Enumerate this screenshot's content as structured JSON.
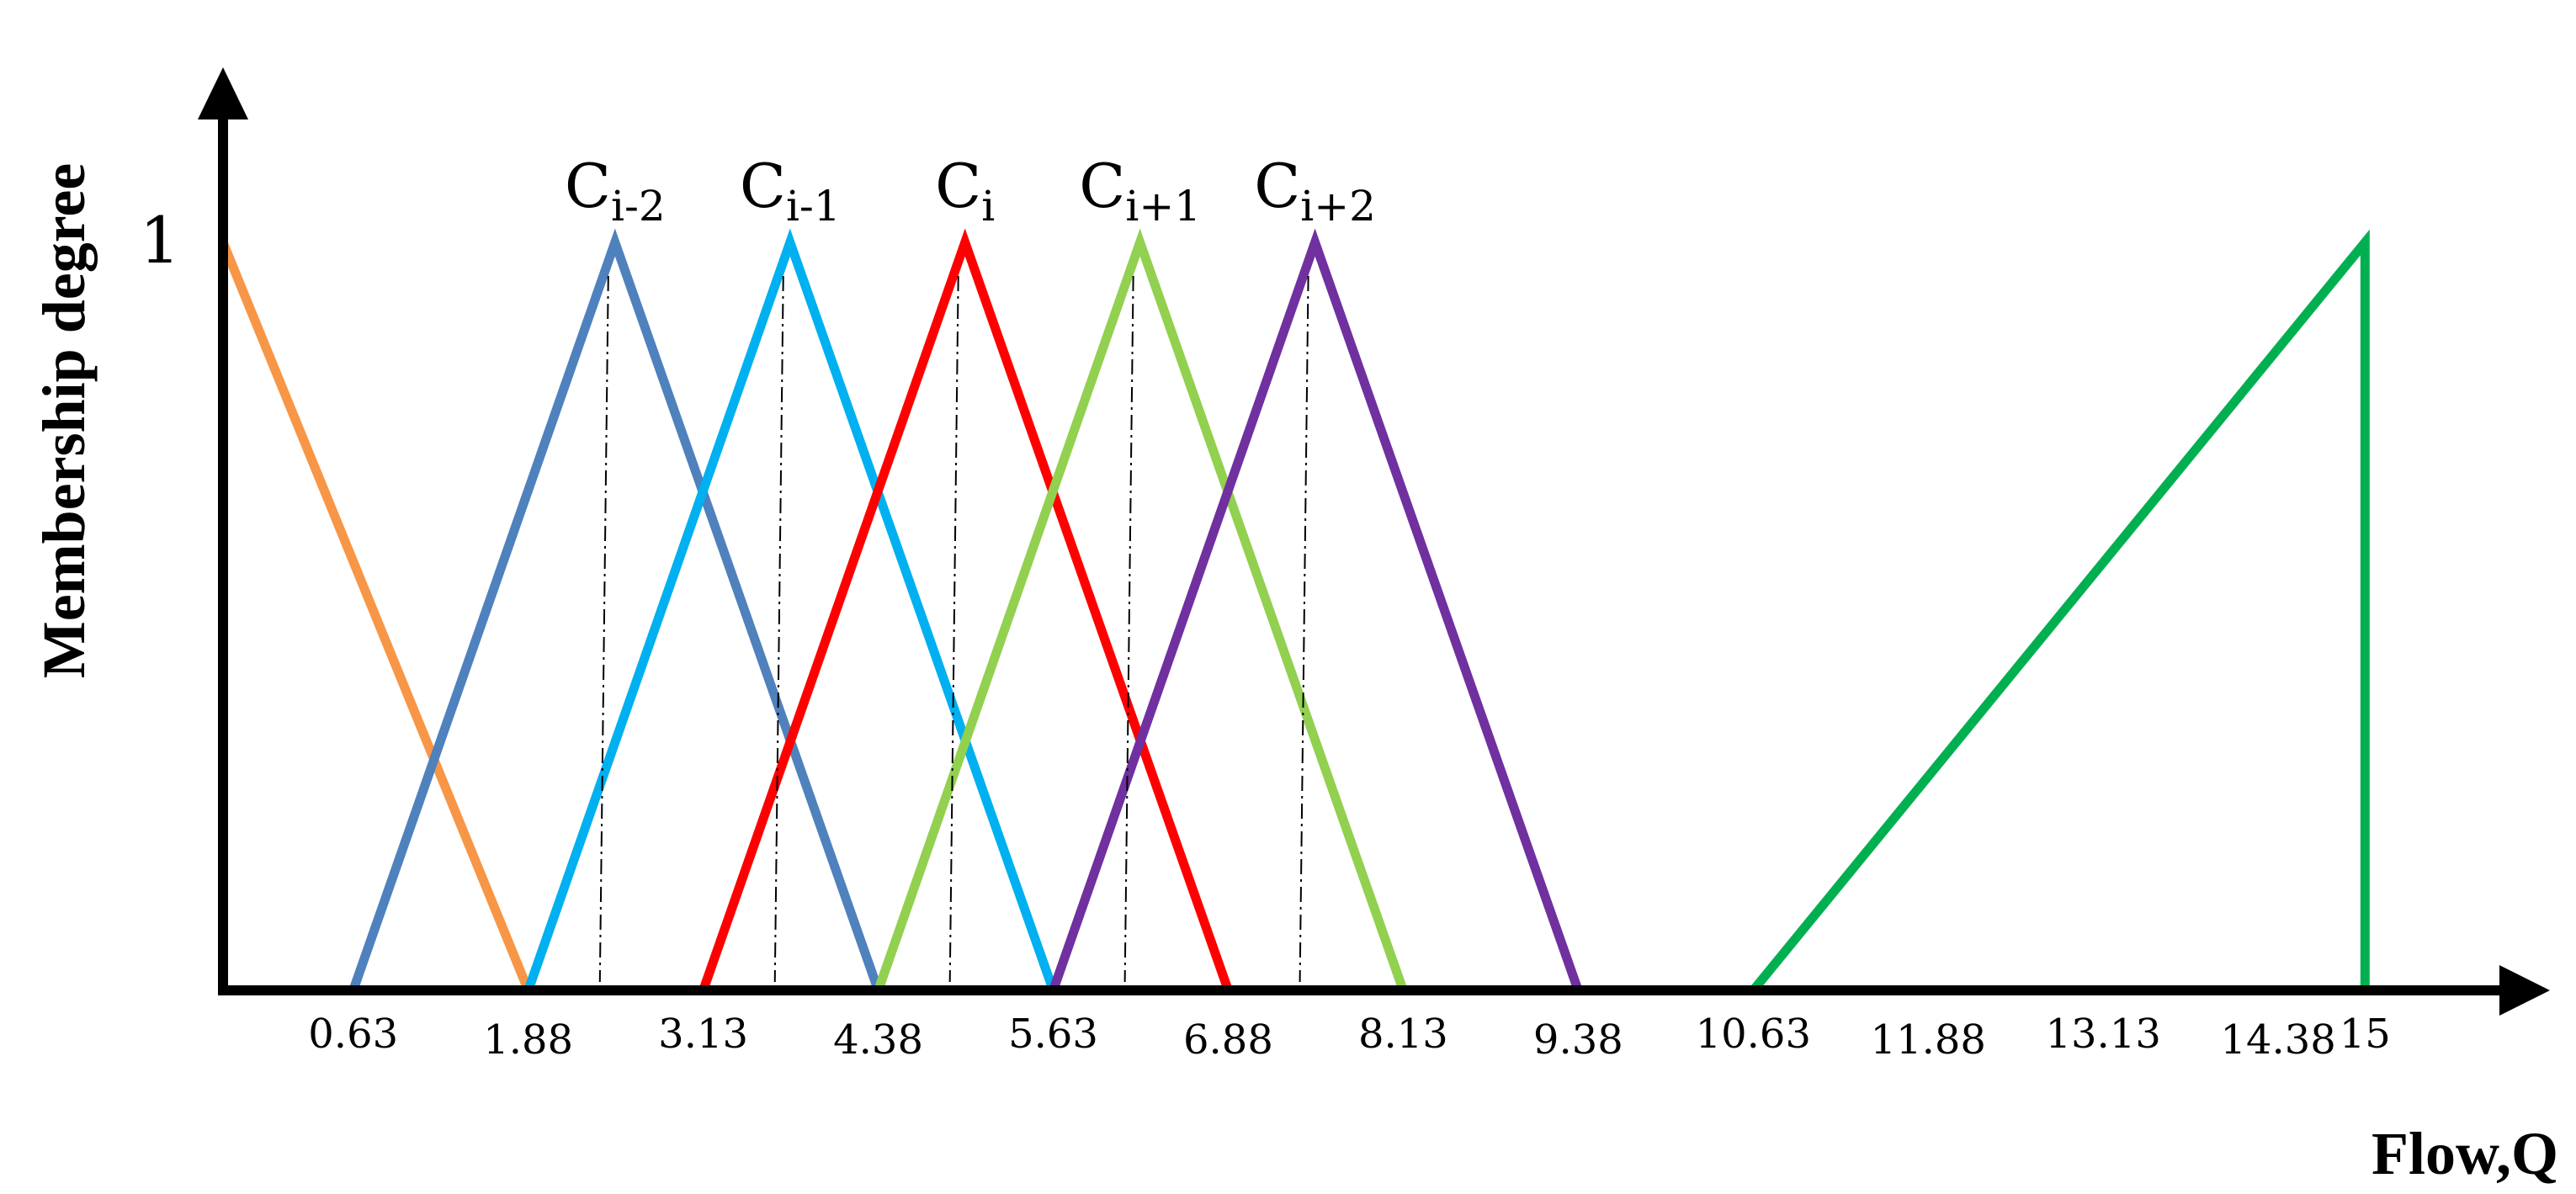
{
  "chart_data": {
    "type": "line",
    "title": "",
    "xlabel": "Flow,Q",
    "ylabel": "Membership degree",
    "y_tick_label": "1",
    "xlim": [
      -0.3,
      15.9
    ],
    "ylim": [
      0,
      1
    ],
    "x_tick_labels": [
      {
        "value": 0.63,
        "label": "0.63"
      },
      {
        "value": 1.88,
        "label": "1.88"
      },
      {
        "value": 3.13,
        "label": "3.13"
      },
      {
        "value": 4.38,
        "label": "4.38"
      },
      {
        "value": 5.63,
        "label": "5.63"
      },
      {
        "value": 6.88,
        "label": "6.88"
      },
      {
        "value": 8.13,
        "label": "8.13"
      },
      {
        "value": 9.38,
        "label": "9.38"
      },
      {
        "value": 10.63,
        "label": "10.63"
      },
      {
        "value": 11.88,
        "label": "11.88"
      },
      {
        "value": 13.13,
        "label": "13.13"
      },
      {
        "value": 14.38,
        "label": "14.38"
      },
      {
        "value": 15,
        "label": "15"
      }
    ],
    "series": [
      {
        "color": "#F79646",
        "points": [
          [
            -0.3,
            1
          ],
          [
            1.88,
            0
          ]
        ]
      },
      {
        "name": "Ci-2",
        "label_main": "C",
        "label_sub": "i-2",
        "color": "#4F81BD",
        "peak": 2.5,
        "points": [
          [
            0.63,
            0
          ],
          [
            2.5,
            1
          ],
          [
            4.38,
            0
          ]
        ]
      },
      {
        "name": "Ci-1",
        "label_main": "C",
        "label_sub": "i-1",
        "color": "#00B0F0",
        "peak": 3.75,
        "points": [
          [
            1.88,
            0
          ],
          [
            3.75,
            1
          ],
          [
            5.63,
            0
          ]
        ]
      },
      {
        "name": "Ci",
        "label_main": "C",
        "label_sub": "i",
        "color": "#FF0000",
        "peak": 5.0,
        "points": [
          [
            3.13,
            0
          ],
          [
            5.0,
            1
          ],
          [
            6.88,
            0
          ]
        ]
      },
      {
        "name": "Ci+1",
        "label_main": "C",
        "label_sub": "i+1",
        "color": "#92D050",
        "peak": 6.25,
        "points": [
          [
            4.38,
            0
          ],
          [
            6.25,
            1
          ],
          [
            8.13,
            0
          ]
        ]
      },
      {
        "name": "Ci+2",
        "label_main": "C",
        "label_sub": "i+2",
        "color": "#7030A0",
        "peak": 7.5,
        "points": [
          [
            5.63,
            0
          ],
          [
            7.5,
            1
          ],
          [
            9.38,
            0
          ]
        ]
      },
      {
        "color": "#00B050",
        "points": [
          [
            10.63,
            0
          ],
          [
            15,
            1
          ],
          [
            15,
            0
          ]
        ]
      }
    ],
    "grid": false,
    "legend": "none"
  }
}
